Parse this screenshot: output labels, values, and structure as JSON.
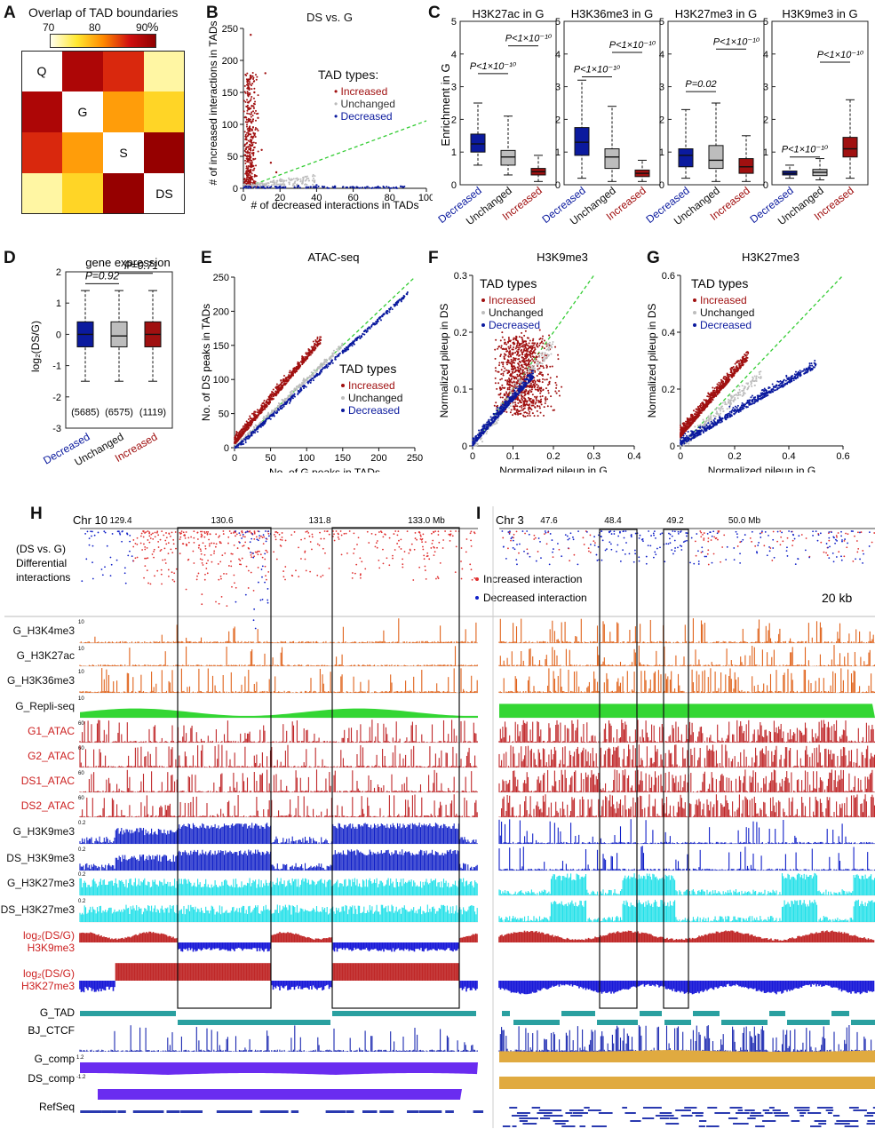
{
  "panels": {
    "A": {
      "letter": "A",
      "title": "Overlap of TAD boundaries",
      "scale_ticks": [
        "70",
        "80",
        "90"
      ],
      "unit": "%",
      "labels": [
        "Q",
        "G",
        "S",
        "DS"
      ]
    },
    "B": {
      "letter": "B",
      "title": "DS vs. G",
      "ylabel": "# of increased interactions in TADs",
      "xlabel": "# of decreased interactions in TADs",
      "legend_title": "TAD types:",
      "legend": [
        "Increased",
        "Unchanged",
        "Decreased"
      ],
      "xticks": [
        "0",
        "20",
        "40",
        "60",
        "80",
        "100"
      ],
      "yticks": [
        "0",
        "50",
        "100",
        "150",
        "200",
        "250"
      ]
    },
    "C": {
      "letter": "C",
      "ylabel": "Enrichment in G",
      "subtitles": [
        "H3K27ac in G",
        "H3K36me3 in G",
        "H3K27me3 in G",
        "H3K9me3 in G"
      ],
      "pvals": [
        [
          "P<1×10⁻¹⁰",
          "P<1×10⁻¹⁰"
        ],
        [
          "P<1×10⁻¹⁰",
          "P<1×10⁻¹⁰"
        ],
        [
          "P=0.02",
          "P<1×10⁻¹⁰"
        ],
        [
          "P<1×10⁻¹⁰",
          "P<1×10⁻¹⁰"
        ]
      ],
      "categories": [
        "Decreased",
        "Unchanged",
        "Increased"
      ],
      "yticks": [
        "0",
        "1",
        "2",
        "3",
        "4",
        "5"
      ]
    },
    "D": {
      "letter": "D",
      "title": "gene expression",
      "ylabel": "log₂(DS/G)",
      "pvals": [
        "P=0.92",
        "P=0.71"
      ],
      "counts": [
        "(5685)",
        "(6575)",
        "(1119)"
      ],
      "categories": [
        "Decreased",
        "Unchanged",
        "Increased"
      ],
      "yticks": [
        "2",
        "1",
        "0",
        "-1",
        "-2",
        "-3"
      ]
    },
    "E": {
      "letter": "E",
      "title": "ATAC-seq",
      "ylabel": "No. of DS peaks in TADs",
      "xlabel": "No. of G peaks in TADs",
      "legend_title": "TAD types",
      "legend": [
        "Increased",
        "Unchanged",
        "Decreased"
      ],
      "xticks": [
        "0",
        "50",
        "100",
        "150",
        "200",
        "250"
      ],
      "yticks": [
        "0",
        "50",
        "100",
        "150",
        "200",
        "250"
      ]
    },
    "F": {
      "letter": "F",
      "title": "H3K9me3",
      "ylabel": "Normalized pileup in DS",
      "xlabel": "Normalized pileup in G",
      "legend_title": "TAD types",
      "legend": [
        "Increased",
        "Unchanged",
        "Decreased"
      ],
      "xticks": [
        "0",
        "0.1",
        "0.2",
        "0.3",
        "0.4"
      ],
      "yticks": [
        "0",
        "0.1",
        "0.2",
        "0.3"
      ]
    },
    "G": {
      "letter": "G",
      "title": "H3K27me3",
      "ylabel": "Normalized pileup in DS",
      "xlabel": "Normalized pileup in G",
      "legend_title": "TAD types",
      "legend": [
        "Increased",
        "Unchanged",
        "Decreased"
      ],
      "xticks": [
        "0",
        "0.2",
        "0.4",
        "0.6"
      ],
      "yticks": [
        "0",
        "0.2",
        "0.4",
        "0.6"
      ]
    },
    "H": {
      "letter": "H",
      "chr": "Chr 10",
      "coords": [
        "129.4",
        "130.6",
        "131.8",
        "133.0 Mb"
      ],
      "left_label": [
        "(DS vs. G)",
        "Differential",
        "interactions"
      ]
    },
    "I": {
      "letter": "I",
      "chr": "Chr 3",
      "coords": [
        "47.6",
        "48.4",
        "49.2",
        "50.0 Mb"
      ],
      "legend": [
        "Increased interaction",
        "Decreased interaction"
      ],
      "scale": "20 kb"
    }
  },
  "tracks": [
    {
      "name": "G_H3K4me3",
      "red": false
    },
    {
      "name": "G_H3K27ac",
      "red": false
    },
    {
      "name": "G_H3K36me3",
      "red": false
    },
    {
      "name": "G_Repli-seq",
      "red": false
    },
    {
      "name": "G1_ATAC",
      "red": true
    },
    {
      "name": "G2_ATAC",
      "red": true
    },
    {
      "name": "DS1_ATAC",
      "red": true
    },
    {
      "name": "DS2_ATAC",
      "red": true
    },
    {
      "name": "G_H3K9me3",
      "red": false
    },
    {
      "name": "DS_H3K9me3",
      "red": false
    },
    {
      "name": "G_H3K27me3",
      "red": false
    },
    {
      "name": "DS_H3K27me3",
      "red": false
    }
  ],
  "ratio_tracks": [
    {
      "top": "log₂(DS/G)",
      "bottom": "H3K9me3"
    },
    {
      "top": "log₂(DS/G)",
      "bottom": "H3K27me3"
    }
  ],
  "bottom_tracks": [
    "G_TAD",
    "BJ_CTCF",
    "G_comp",
    "DS_comp",
    "RefSeq"
  ],
  "colors": {
    "increased": "#a01010",
    "unchanged": "#bdbdbd",
    "decreased": "#0b1a9e",
    "green_line": "#33cc33",
    "orange": "#e0621a",
    "atac": "#c0282a",
    "blue": "#1020c8",
    "cyan": "#20e0e8",
    "comp_purple": "#6a2cf0",
    "comp_gold": "#e0aa40"
  },
  "chart_data": [
    {
      "type": "heatmap",
      "title": "Overlap of TAD boundaries",
      "rows": [
        "Q",
        "G",
        "S",
        "DS"
      ],
      "cols": [
        "Q",
        "G",
        "S",
        "DS"
      ],
      "values": [
        [
          100,
          88,
          84,
          72
        ],
        [
          88,
          100,
          79,
          76
        ],
        [
          84,
          79,
          100,
          92
        ],
        [
          72,
          76,
          92,
          100
        ]
      ],
      "colorbar": [
        70,
        90
      ],
      "unit": "%"
    },
    {
      "type": "scatter",
      "title": "DS vs. G",
      "xlabel": "# of decreased interactions in TADs",
      "ylabel": "# of increased interactions in TADs",
      "xlim": [
        0,
        100
      ],
      "ylim": [
        0,
        250
      ],
      "series": [
        {
          "name": "Increased",
          "points": [
            [
              2,
              20
            ],
            [
              3,
              45
            ],
            [
              5,
              80
            ],
            [
              6,
              150
            ],
            [
              8,
              110
            ],
            [
              10,
              60
            ],
            [
              12,
              180
            ],
            [
              4,
              240
            ],
            [
              15,
              40
            ],
            [
              18,
              25
            ]
          ]
        },
        {
          "name": "Unchanged",
          "points": [
            [
              5,
              5
            ],
            [
              10,
              8
            ],
            [
              15,
              10
            ],
            [
              20,
              12
            ],
            [
              25,
              9
            ],
            [
              30,
              14
            ]
          ]
        },
        {
          "name": "Decreased",
          "points": [
            [
              10,
              2
            ],
            [
              20,
              3
            ],
            [
              30,
              4
            ],
            [
              40,
              5
            ],
            [
              50,
              3
            ],
            [
              60,
              2
            ],
            [
              72,
              1
            ],
            [
              86,
              3
            ]
          ]
        }
      ]
    },
    {
      "type": "box",
      "title": "H3K27ac in G",
      "categories": [
        "Decreased",
        "Unchanged",
        "Increased"
      ],
      "ylim": [
        0,
        5
      ],
      "boxes": [
        [
          0.6,
          1.0,
          1.25,
          1.55,
          2.5
        ],
        [
          0.3,
          0.6,
          0.85,
          1.05,
          2.1
        ],
        [
          0.1,
          0.3,
          0.4,
          0.5,
          0.9
        ]
      ]
    },
    {
      "type": "box",
      "title": "H3K36me3 in G",
      "categories": [
        "Decreased",
        "Unchanged",
        "Increased"
      ],
      "ylim": [
        0,
        5
      ],
      "boxes": [
        [
          0.2,
          0.9,
          1.3,
          1.75,
          3.2
        ],
        [
          0.1,
          0.5,
          0.85,
          1.1,
          2.4
        ],
        [
          0.1,
          0.25,
          0.35,
          0.45,
          0.75
        ]
      ]
    },
    {
      "type": "box",
      "title": "H3K27me3 in G",
      "categories": [
        "Decreased",
        "Unchanged",
        "Increased"
      ],
      "ylim": [
        0,
        5
      ],
      "boxes": [
        [
          0.2,
          0.55,
          0.9,
          1.1,
          2.3
        ],
        [
          0.1,
          0.5,
          0.75,
          1.2,
          2.5
        ],
        [
          0.1,
          0.35,
          0.55,
          0.8,
          1.5
        ]
      ]
    },
    {
      "type": "box",
      "title": "H3K9me3 in G",
      "categories": [
        "Decreased",
        "Unchanged",
        "Increased"
      ],
      "ylim": [
        0,
        5
      ],
      "boxes": [
        [
          0.2,
          0.3,
          0.35,
          0.42,
          0.6
        ],
        [
          0.15,
          0.28,
          0.38,
          0.47,
          0.8
        ],
        [
          0.2,
          0.85,
          1.1,
          1.45,
          2.6
        ]
      ]
    },
    {
      "type": "box",
      "title": "gene expression",
      "ylabel": "log₂(DS/G)",
      "categories": [
        "Decreased",
        "Unchanged",
        "Increased"
      ],
      "ylim": [
        -3,
        2
      ],
      "boxes": [
        [
          -1.5,
          -0.4,
          0.0,
          0.4,
          1.4
        ],
        [
          -1.5,
          -0.4,
          -0.05,
          0.4,
          1.4
        ],
        [
          -1.5,
          -0.4,
          0.0,
          0.4,
          1.4
        ]
      ]
    },
    {
      "type": "scatter",
      "title": "ATAC-seq",
      "xlabel": "No. of G peaks in TADs",
      "ylabel": "No. of DS peaks in TADs",
      "xlim": [
        0,
        250
      ],
      "ylim": [
        0,
        250
      ],
      "series": [
        {
          "name": "Increased",
          "points": [
            [
              20,
              50
            ],
            [
              40,
              90
            ],
            [
              60,
              110
            ],
            [
              80,
              120
            ],
            [
              100,
              140
            ]
          ]
        },
        {
          "name": "Unchanged",
          "points": [
            [
              30,
              30
            ],
            [
              60,
              60
            ],
            [
              90,
              90
            ]
          ]
        },
        {
          "name": "Decreased",
          "points": [
            [
              50,
              40
            ],
            [
              100,
              90
            ],
            [
              150,
              140
            ],
            [
              200,
              190
            ]
          ]
        }
      ]
    },
    {
      "type": "scatter",
      "title": "H3K9me3",
      "xlabel": "Normalized pileup in G",
      "ylabel": "Normalized pileup in DS",
      "xlim": [
        0,
        0.4
      ],
      "ylim": [
        0,
        0.3
      ],
      "series": [
        {
          "name": "Increased",
          "points": [
            [
              0.1,
              0.12
            ],
            [
              0.15,
              0.15
            ],
            [
              0.2,
              0.14
            ],
            [
              0.25,
              0.17
            ]
          ]
        },
        {
          "name": "Unchanged",
          "points": [
            [
              0.05,
              0.05
            ],
            [
              0.1,
              0.08
            ]
          ]
        },
        {
          "name": "Decreased",
          "points": [
            [
              0.05,
              0.04
            ],
            [
              0.08,
              0.07
            ],
            [
              0.12,
              0.1
            ]
          ]
        }
      ]
    },
    {
      "type": "scatter",
      "title": "H3K27me3",
      "xlabel": "Normalized pileup in G",
      "ylabel": "Normalized pileup in DS",
      "xlim": [
        0,
        0.6
      ],
      "ylim": [
        0,
        0.6
      ],
      "series": [
        {
          "name": "Increased",
          "points": [
            [
              0.05,
              0.1
            ],
            [
              0.1,
              0.2
            ],
            [
              0.15,
              0.22
            ]
          ]
        },
        {
          "name": "Unchanged",
          "points": [
            [
              0.1,
              0.1
            ],
            [
              0.2,
              0.2
            ]
          ]
        },
        {
          "name": "Decreased",
          "points": [
            [
              0.1,
              0.08
            ],
            [
              0.2,
              0.15
            ],
            [
              0.3,
              0.2
            ]
          ]
        }
      ]
    }
  ]
}
